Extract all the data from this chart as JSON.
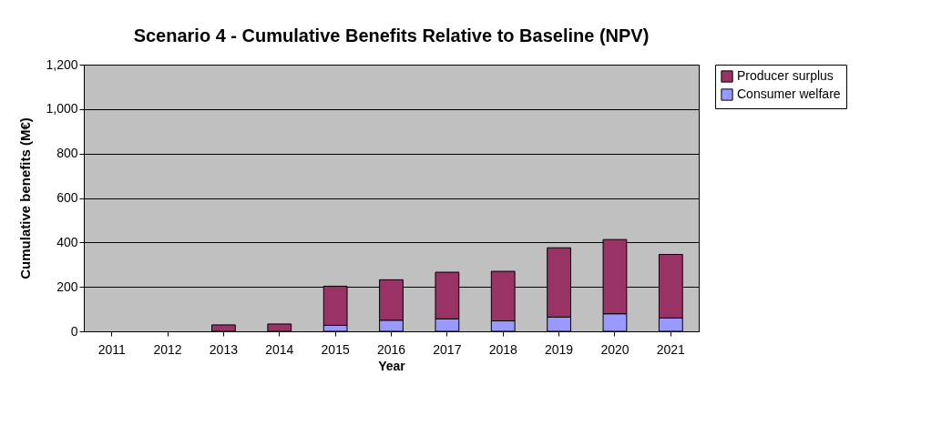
{
  "chart_data": {
    "type": "bar",
    "title": "Scenario 4 - Cumulative Benefits Relative to Baseline (NPV)",
    "xlabel": "Year",
    "ylabel": "Cumulative benefits (M€)",
    "categories": [
      "2011",
      "2012",
      "2013",
      "2014",
      "2015",
      "2016",
      "2017",
      "2018",
      "2019",
      "2020",
      "2021"
    ],
    "series": [
      {
        "name": "Consumer welfare",
        "color": "#9999ff",
        "values": [
          0,
          0,
          0,
          0,
          27,
          50,
          56,
          47,
          64,
          79,
          60
        ]
      },
      {
        "name": "Producer surplus",
        "color": "#993366",
        "values": [
          0,
          0,
          29,
          33,
          176,
          182,
          210,
          223,
          312,
          334,
          286
        ]
      }
    ],
    "stacked": true,
    "ylim": [
      0,
      1200
    ],
    "yticks": [
      0,
      200,
      400,
      600,
      800,
      {
        "value": 1000,
        "label": "1,000"
      },
      {
        "value": 1200,
        "label": "1,200"
      }
    ],
    "grid": "y",
    "legend": "right"
  }
}
